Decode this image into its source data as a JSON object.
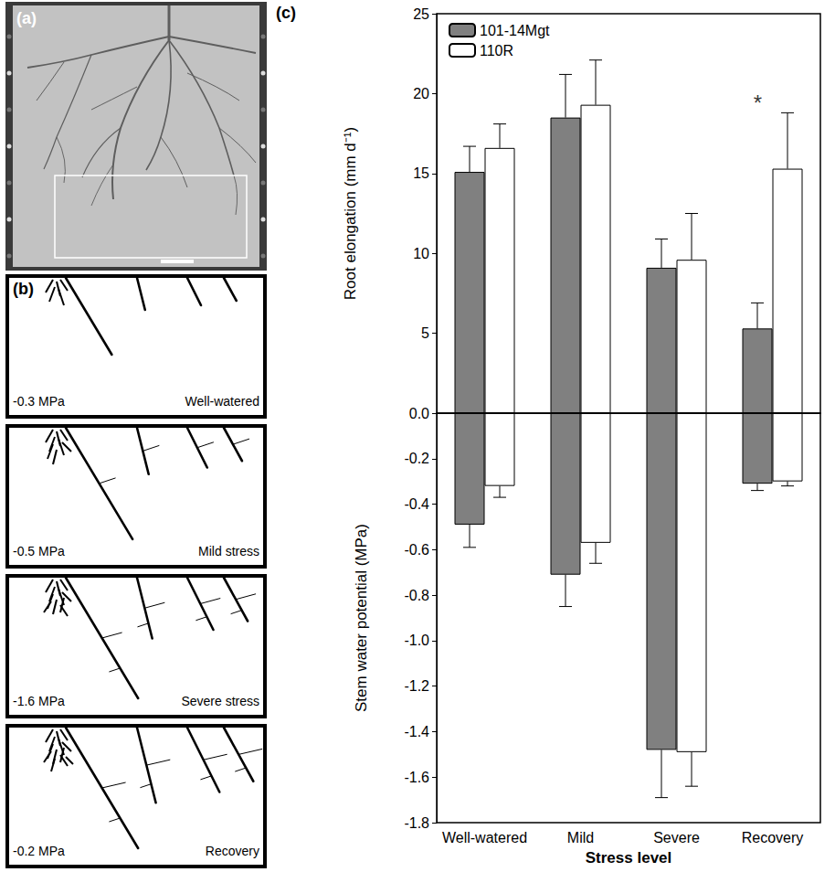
{
  "panel_labels": {
    "a": "(a)",
    "b": "(b)",
    "c": "(c)"
  },
  "panel_b": [
    {
      "potential": "-0.3 MPa",
      "condition": "Well-watered"
    },
    {
      "potential": "-0.5 MPa",
      "condition": "Mild stress"
    },
    {
      "potential": "-1.6 MPa",
      "condition": "Severe stress"
    },
    {
      "potential": "-0.2 MPa",
      "condition": "Recovery"
    }
  ],
  "chart_data": {
    "type": "bar",
    "categories": [
      "Well-watered",
      "Mild",
      "Severe",
      "Recovery"
    ],
    "x_label": "Stress level",
    "y_label": "Root elongation (mm d⁻¹)",
    "y2_label": "Stem water potential (MPa)",
    "ylim": [
      0,
      25
    ],
    "yticks": [
      {
        "value": 0,
        "label": "0.0"
      },
      5,
      10,
      15,
      20,
      25
    ],
    "y2lim": [
      -1.8,
      0
    ],
    "y2ticks": [
      -1.8,
      -1.6,
      -1.4,
      -1.2,
      {
        "value": -1,
        "label": "-1.0"
      },
      -0.8,
      -0.6,
      -0.4,
      -0.2
    ],
    "series": [
      {
        "name": "101-14Mgt",
        "color": "#808080",
        "values": [
          15.1,
          18.5,
          9.1,
          5.3
        ],
        "errors": [
          1.6,
          2.7,
          1.8,
          1.6
        ]
      },
      {
        "name": "110R",
        "color": "#ffffff",
        "values": [
          16.6,
          19.3,
          9.6,
          15.3
        ],
        "errors": [
          1.5,
          2.8,
          2.9,
          3.5
        ]
      },
      {
        "name": "101-14Mgt",
        "color": "#808080",
        "axis": "y2",
        "values": [
          -0.49,
          -0.71,
          -1.48,
          -0.31
        ],
        "errors": [
          0.1,
          0.14,
          0.21,
          0.03
        ]
      },
      {
        "name": "110R",
        "color": "#ffffff",
        "axis": "y2",
        "values": [
          -0.32,
          -0.57,
          -1.49,
          -0.3
        ],
        "errors": [
          0.05,
          0.09,
          0.15,
          0.02
        ]
      }
    ],
    "legend": "upper left",
    "grid": false,
    "annotations": [
      {
        "text": "*",
        "category": "Recovery"
      }
    ]
  }
}
